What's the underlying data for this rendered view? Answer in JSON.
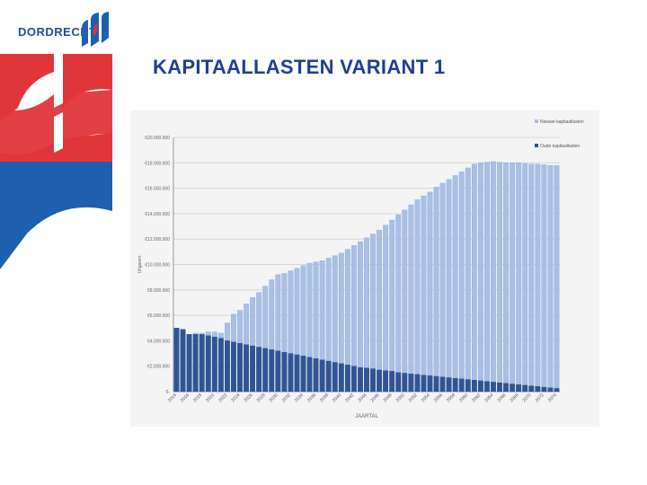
{
  "header": {
    "logo_text": "DORDRECHT",
    "title": "KAPITAALLASTEN VARIANT 1"
  },
  "colors": {
    "title": "#1f3e96",
    "brand_blue": "#1f5fb0",
    "brand_red": "#e0363a",
    "bar_new": "#a8bfe6",
    "bar_old": "#2f5596"
  },
  "chart_data": {
    "type": "bar",
    "stacked": false,
    "xlabel": "JAARTAL",
    "ylabel": "Uitgaven",
    "ylim": [
      0,
      20000000
    ],
    "y_ticks": [
      0,
      2000000,
      4000000,
      6000000,
      8000000,
      10000000,
      12000000,
      14000000,
      16000000,
      18000000,
      20000000
    ],
    "y_tick_labels": [
      "€-",
      "€2.000.000",
      "€4.000.000",
      "€6.000.000",
      "€8.000.000",
      "€10.000.000",
      "€12.000.000",
      "€14.000.000",
      "€16.000.000",
      "€18.000.000",
      "€20.000.000"
    ],
    "grid": true,
    "legend_position": "top-right",
    "categories": [
      2014,
      2015,
      2016,
      2017,
      2018,
      2019,
      2020,
      2021,
      2022,
      2023,
      2024,
      2025,
      2026,
      2027,
      2028,
      2029,
      2030,
      2031,
      2032,
      2033,
      2034,
      2035,
      2036,
      2037,
      2038,
      2039,
      2040,
      2041,
      2042,
      2043,
      2044,
      2045,
      2046,
      2047,
      2048,
      2049,
      2050,
      2051,
      2052,
      2053,
      2054,
      2055,
      2056,
      2057,
      2058,
      2059,
      2060,
      2061,
      2062,
      2063,
      2064,
      2065,
      2066,
      2067,
      2068,
      2069,
      2070,
      2071,
      2072,
      2073,
      2074
    ],
    "x_tick_labels": [
      "2014",
      "2016",
      "2018",
      "2020",
      "2022",
      "2024",
      "2026",
      "2028",
      "2030",
      "2032",
      "2034",
      "2036",
      "2038",
      "2040",
      "2042",
      "2044",
      "2046",
      "2048",
      "2050",
      "2052",
      "2054",
      "2056",
      "2058",
      "2060",
      "2062",
      "2064",
      "2066",
      "2068",
      "2070",
      "2072",
      "2074"
    ],
    "series": [
      {
        "name": "Nieuwe kapitaallasten",
        "values": [
          5000000,
          4900000,
          4500000,
          4600000,
          4600000,
          4700000,
          4700000,
          4600000,
          5400000,
          6100000,
          6400000,
          6900000,
          7400000,
          7800000,
          8300000,
          8800000,
          9200000,
          9300000,
          9500000,
          9700000,
          9900000,
          10100000,
          10200000,
          10300000,
          10500000,
          10700000,
          10900000,
          11200000,
          11500000,
          11800000,
          12100000,
          12400000,
          12700000,
          13100000,
          13500000,
          13900000,
          14300000,
          14700000,
          15100000,
          15400000,
          15700000,
          16100000,
          16400000,
          16700000,
          17000000,
          17300000,
          17600000,
          17900000,
          18000000,
          18050000,
          18100000,
          18050000,
          18000000,
          18000000,
          18000000,
          17950000,
          17900000,
          17900000,
          17850000,
          17800000,
          17800000
        ]
      },
      {
        "name": "Oude kapitaallasten",
        "values": [
          5000000,
          4900000,
          4500000,
          4500000,
          4500000,
          4400000,
          4300000,
          4200000,
          4000000,
          3900000,
          3800000,
          3700000,
          3600000,
          3500000,
          3400000,
          3300000,
          3200000,
          3100000,
          3000000,
          2900000,
          2800000,
          2700000,
          2600000,
          2500000,
          2400000,
          2300000,
          2200000,
          2100000,
          2000000,
          1900000,
          1850000,
          1800000,
          1700000,
          1650000,
          1600000,
          1500000,
          1450000,
          1400000,
          1350000,
          1300000,
          1250000,
          1200000,
          1150000,
          1100000,
          1050000,
          1000000,
          950000,
          900000,
          850000,
          800000,
          750000,
          700000,
          650000,
          600000,
          550000,
          500000,
          450000,
          400000,
          350000,
          300000,
          250000
        ]
      }
    ]
  }
}
